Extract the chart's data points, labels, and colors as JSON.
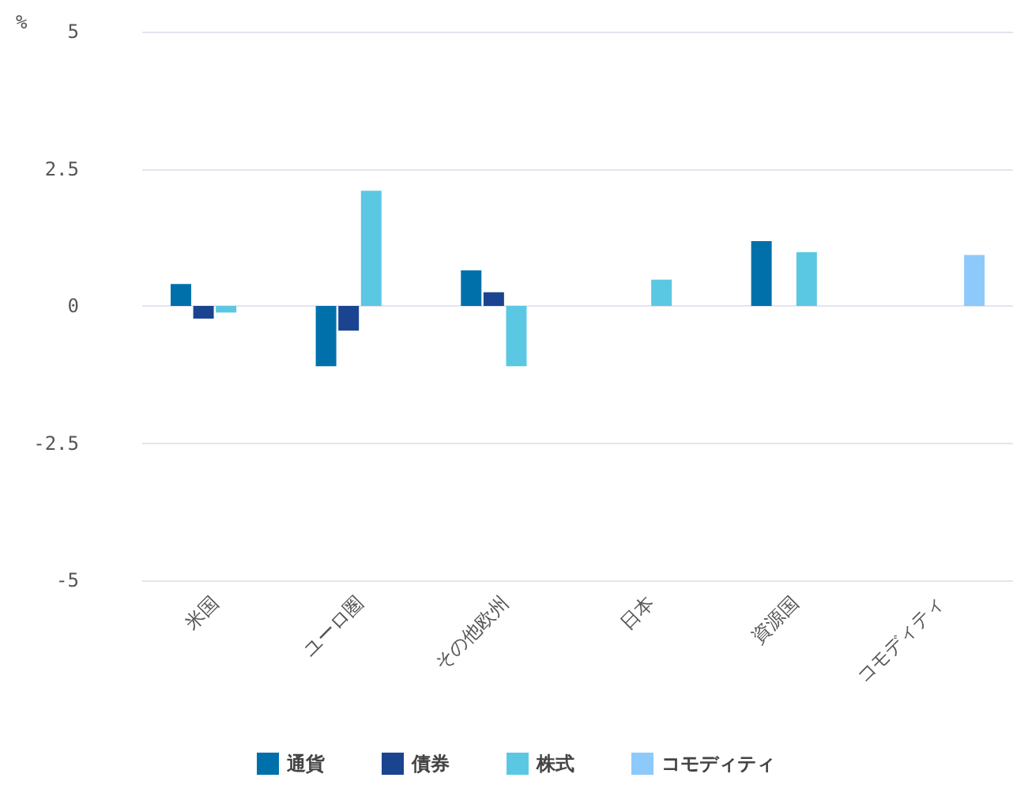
{
  "chart_data": {
    "type": "bar",
    "ylabel": "%",
    "categories": [
      "米国",
      "ユーロ圏",
      "その他欧州",
      "日本",
      "資源国",
      "コモディティ"
    ],
    "series": [
      {
        "name": "通貨",
        "color": "#0070ab",
        "values": [
          0.4,
          -1.1,
          0.65,
          null,
          1.18,
          null
        ]
      },
      {
        "name": "債券",
        "color": "#1a4490",
        "values": [
          -0.23,
          -0.45,
          0.25,
          null,
          null,
          null
        ]
      },
      {
        "name": "株式",
        "color": "#5bc8e3",
        "values": [
          -0.12,
          2.1,
          -1.1,
          0.48,
          0.98,
          null
        ]
      },
      {
        "name": "コモディティ",
        "color": "#8ec9fb",
        "values": [
          null,
          null,
          null,
          null,
          null,
          0.93
        ]
      }
    ],
    "ylim": [
      -5,
      5
    ],
    "yticks": [
      -5,
      -2.5,
      0,
      2.5,
      5
    ],
    "grid": "y",
    "legend": "bottom"
  }
}
